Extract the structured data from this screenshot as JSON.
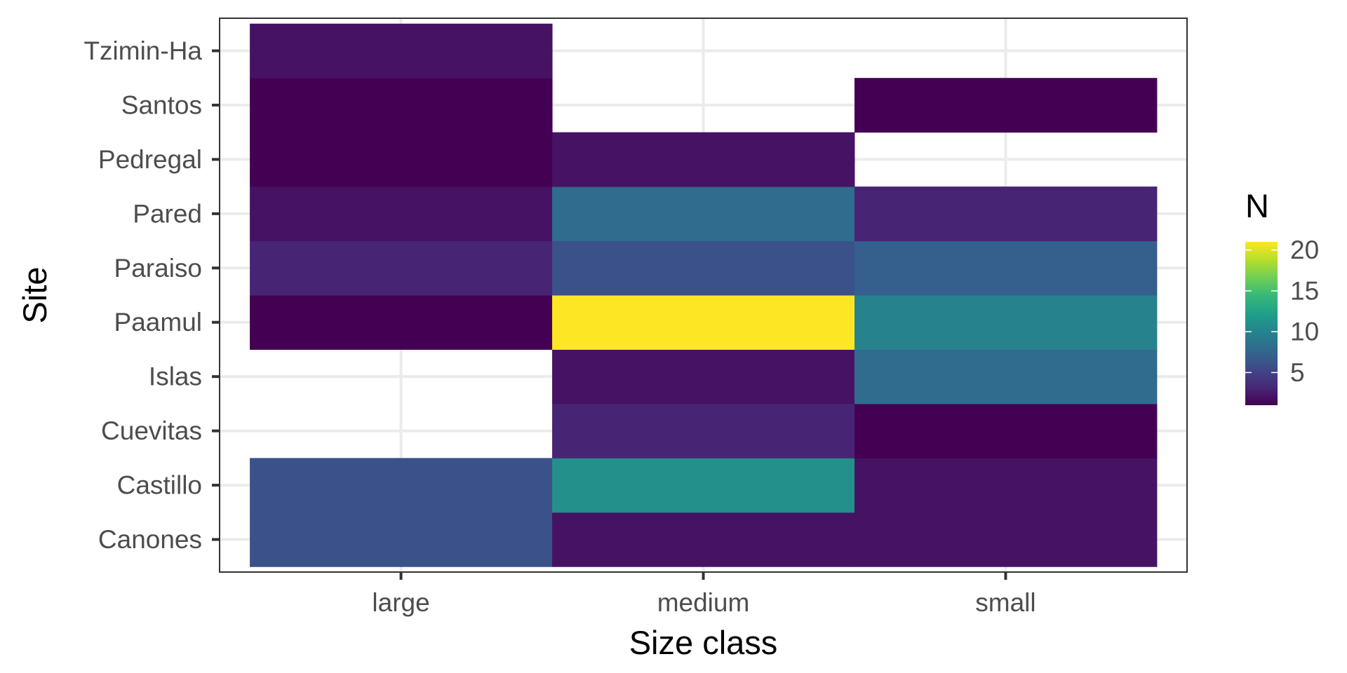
{
  "chart_data": {
    "type": "heatmap",
    "title": "",
    "xlabel": "Size class",
    "ylabel": "Site",
    "x_categories": [
      "large",
      "medium",
      "small"
    ],
    "y_categories": [
      "Canones",
      "Castillo",
      "Cuevitas",
      "Islas",
      "Paamul",
      "Paraiso",
      "Pared",
      "Pedregal",
      "Santos",
      "Tzimin-Ha"
    ],
    "cells": [
      {
        "x": "large",
        "y": "Canones",
        "value": 6
      },
      {
        "x": "large",
        "y": "Castillo",
        "value": 6
      },
      {
        "x": "large",
        "y": "Paamul",
        "value": 1
      },
      {
        "x": "large",
        "y": "Paraiso",
        "value": 3
      },
      {
        "x": "large",
        "y": "Pared",
        "value": 2
      },
      {
        "x": "large",
        "y": "Pedregal",
        "value": 1
      },
      {
        "x": "large",
        "y": "Santos",
        "value": 1
      },
      {
        "x": "large",
        "y": "Tzimin-Ha",
        "value": 2
      },
      {
        "x": "medium",
        "y": "Canones",
        "value": 2
      },
      {
        "x": "medium",
        "y": "Castillo",
        "value": 11
      },
      {
        "x": "medium",
        "y": "Cuevitas",
        "value": 3
      },
      {
        "x": "medium",
        "y": "Islas",
        "value": 2
      },
      {
        "x": "medium",
        "y": "Paamul",
        "value": 21
      },
      {
        "x": "medium",
        "y": "Paraiso",
        "value": 6
      },
      {
        "x": "medium",
        "y": "Pared",
        "value": 8
      },
      {
        "x": "medium",
        "y": "Pedregal",
        "value": 2
      },
      {
        "x": "small",
        "y": "Canones",
        "value": 2
      },
      {
        "x": "small",
        "y": "Castillo",
        "value": 2
      },
      {
        "x": "small",
        "y": "Cuevitas",
        "value": 1
      },
      {
        "x": "small",
        "y": "Islas",
        "value": 8
      },
      {
        "x": "small",
        "y": "Paamul",
        "value": 10
      },
      {
        "x": "small",
        "y": "Paraiso",
        "value": 7
      },
      {
        "x": "small",
        "y": "Pared",
        "value": 3
      },
      {
        "x": "small",
        "y": "Santos",
        "value": 1
      }
    ],
    "color_scale": {
      "name": "viridis",
      "min": 1,
      "max": 21,
      "stops": [
        "#440154",
        "#482878",
        "#3e4989",
        "#31688e",
        "#26828e",
        "#1f9e89",
        "#35b779",
        "#6ece58",
        "#b5de2b",
        "#fde725"
      ]
    },
    "legend": {
      "title": "N",
      "ticks": [
        5,
        10,
        15,
        20
      ],
      "tick_labels": [
        "5",
        "10",
        "15",
        "20"
      ],
      "position": "right"
    },
    "grid": true,
    "panel_border": true
  }
}
